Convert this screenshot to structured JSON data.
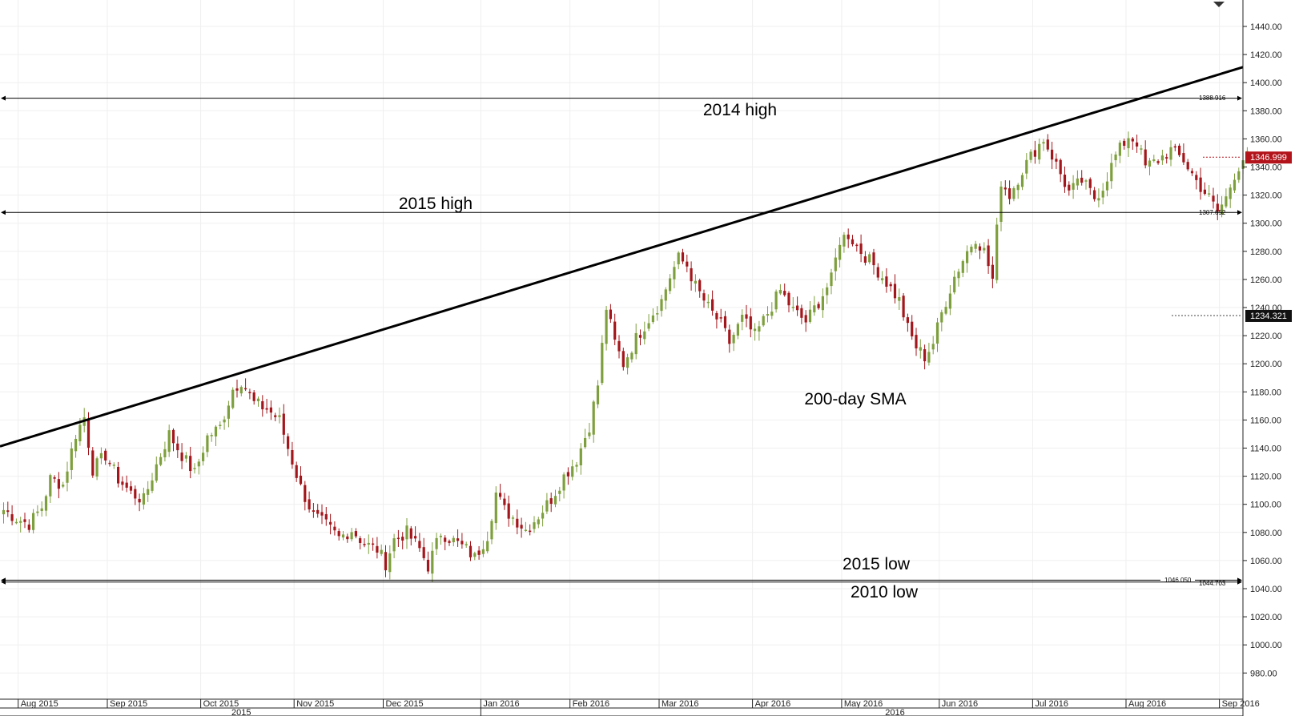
{
  "chart_data": {
    "type": "candlestick",
    "ylim": [
      968,
      1458
    ],
    "y_ticks": [
      "980.00",
      "1000.00",
      "1020.00",
      "1040.00",
      "1060.00",
      "1080.00",
      "1100.00",
      "1120.00",
      "1140.00",
      "1160.00",
      "1180.00",
      "1200.00",
      "1220.00",
      "1240.00",
      "1260.00",
      "1280.00",
      "1300.00",
      "1320.00",
      "1340.00",
      "1360.00",
      "1380.00",
      "1400.00",
      "1420.00",
      "1440.00"
    ],
    "months": [
      {
        "label": "Aug 2015",
        "index": 4
      },
      {
        "label": "Sep 2015",
        "index": 25
      },
      {
        "label": "Oct 2015",
        "index": 47
      },
      {
        "label": "Nov 2015",
        "index": 69
      },
      {
        "label": "Dec 2015",
        "index": 90
      },
      {
        "label": "Jan 2016",
        "index": 113
      },
      {
        "label": "Feb 2016",
        "index": 134
      },
      {
        "label": "Mar 2016",
        "index": 155
      },
      {
        "label": "Apr 2016",
        "index": 177
      },
      {
        "label": "May 2016",
        "index": 198
      },
      {
        "label": "Jun 2016",
        "index": 221
      },
      {
        "label": "Jul 2016",
        "index": 243
      },
      {
        "label": "Aug 2016",
        "index": 265
      },
      {
        "label": "Sep 2016",
        "index": 287
      }
    ],
    "years": [
      {
        "label": "2015",
        "index": 56
      },
      {
        "label": "2016",
        "index": 210
      }
    ],
    "anchors": [
      [
        0,
        1096
      ],
      [
        3,
        1090
      ],
      [
        6,
        1086
      ],
      [
        9,
        1098
      ],
      [
        11,
        1118
      ],
      [
        14,
        1114
      ],
      [
        17,
        1150
      ],
      [
        19,
        1162
      ],
      [
        21,
        1125
      ],
      [
        24,
        1135
      ],
      [
        27,
        1118
      ],
      [
        30,
        1108
      ],
      [
        33,
        1103
      ],
      [
        36,
        1128
      ],
      [
        39,
        1150
      ],
      [
        42,
        1135
      ],
      [
        45,
        1122
      ],
      [
        48,
        1148
      ],
      [
        51,
        1155
      ],
      [
        54,
        1182
      ],
      [
        56,
        1188
      ],
      [
        59,
        1172
      ],
      [
        62,
        1168
      ],
      [
        65,
        1160
      ],
      [
        67,
        1140
      ],
      [
        70,
        1112
      ],
      [
        73,
        1092
      ],
      [
        76,
        1085
      ],
      [
        79,
        1076
      ],
      [
        82,
        1082
      ],
      [
        85,
        1072
      ],
      [
        88,
        1068
      ],
      [
        90,
        1058
      ],
      [
        92,
        1075
      ],
      [
        95,
        1080
      ],
      [
        98,
        1068
      ],
      [
        100,
        1056
      ],
      [
        103,
        1080
      ],
      [
        106,
        1074
      ],
      [
        109,
        1068
      ],
      [
        111,
        1062
      ],
      [
        114,
        1078
      ],
      [
        116,
        1108
      ],
      [
        118,
        1096
      ],
      [
        121,
        1088
      ],
      [
        123,
        1082
      ],
      [
        126,
        1092
      ],
      [
        129,
        1104
      ],
      [
        132,
        1120
      ],
      [
        135,
        1132
      ],
      [
        138,
        1156
      ],
      [
        140,
        1185
      ],
      [
        142,
        1240
      ],
      [
        144,
        1215
      ],
      [
        146,
        1200
      ],
      [
        149,
        1218
      ],
      [
        152,
        1232
      ],
      [
        155,
        1245
      ],
      [
        157,
        1262
      ],
      [
        159,
        1275
      ],
      [
        161,
        1270
      ],
      [
        163,
        1255
      ],
      [
        166,
        1240
      ],
      [
        169,
        1228
      ],
      [
        171,
        1215
      ],
      [
        174,
        1232
      ],
      [
        177,
        1220
      ],
      [
        180,
        1236
      ],
      [
        183,
        1252
      ],
      [
        186,
        1238
      ],
      [
        189,
        1230
      ],
      [
        192,
        1244
      ],
      [
        195,
        1260
      ],
      [
        197,
        1288
      ],
      [
        199,
        1292
      ],
      [
        202,
        1280
      ],
      [
        205,
        1270
      ],
      [
        208,
        1258
      ],
      [
        211,
        1245
      ],
      [
        213,
        1225
      ],
      [
        215,
        1212
      ],
      [
        217,
        1205
      ],
      [
        219,
        1215
      ],
      [
        221,
        1236
      ],
      [
        224,
        1262
      ],
      [
        227,
        1280
      ],
      [
        229,
        1290
      ],
      [
        231,
        1280
      ],
      [
        233,
        1260
      ],
      [
        235,
        1330
      ],
      [
        237,
        1320
      ],
      [
        240,
        1338
      ],
      [
        243,
        1352
      ],
      [
        245,
        1360
      ],
      [
        247,
        1348
      ],
      [
        249,
        1335
      ],
      [
        251,
        1322
      ],
      [
        254,
        1330
      ],
      [
        257,
        1318
      ],
      [
        259,
        1326
      ],
      [
        262,
        1348
      ],
      [
        265,
        1362
      ],
      [
        267,
        1358
      ],
      [
        269,
        1340
      ],
      [
        272,
        1345
      ],
      [
        275,
        1352
      ],
      [
        278,
        1345
      ],
      [
        281,
        1330
      ],
      [
        284,
        1318
      ],
      [
        286,
        1308
      ],
      [
        288,
        1318
      ],
      [
        290,
        1335
      ],
      [
        292,
        1346
      ],
      [
        293,
        1347
      ]
    ],
    "annotations": [
      {
        "text": "2014 high",
        "value": 1388.916
      },
      {
        "text": "2015 high",
        "value": 1307.652
      },
      {
        "text": "2015 low",
        "value": 1046.05
      },
      {
        "text": "2010 low",
        "value": 1044.703
      },
      {
        "text": "200-day SMA"
      }
    ],
    "level_labels": [
      "1388.916",
      "1307.652",
      "1046.050",
      "1044.703"
    ],
    "trendline": {
      "start": [
        0,
        1142
      ],
      "end": [
        293,
        1412
      ]
    },
    "current_price": {
      "label": "1346.999",
      "value": 1346.999
    },
    "sma_value": {
      "label": "1234.321",
      "value": 1234.321
    }
  },
  "colors": {
    "up": "#7e9f3d",
    "down": "#a3161b",
    "price_tag": "#b3141b",
    "sma_tag": "#111111",
    "grid": "#efefef",
    "line": "#000000"
  }
}
